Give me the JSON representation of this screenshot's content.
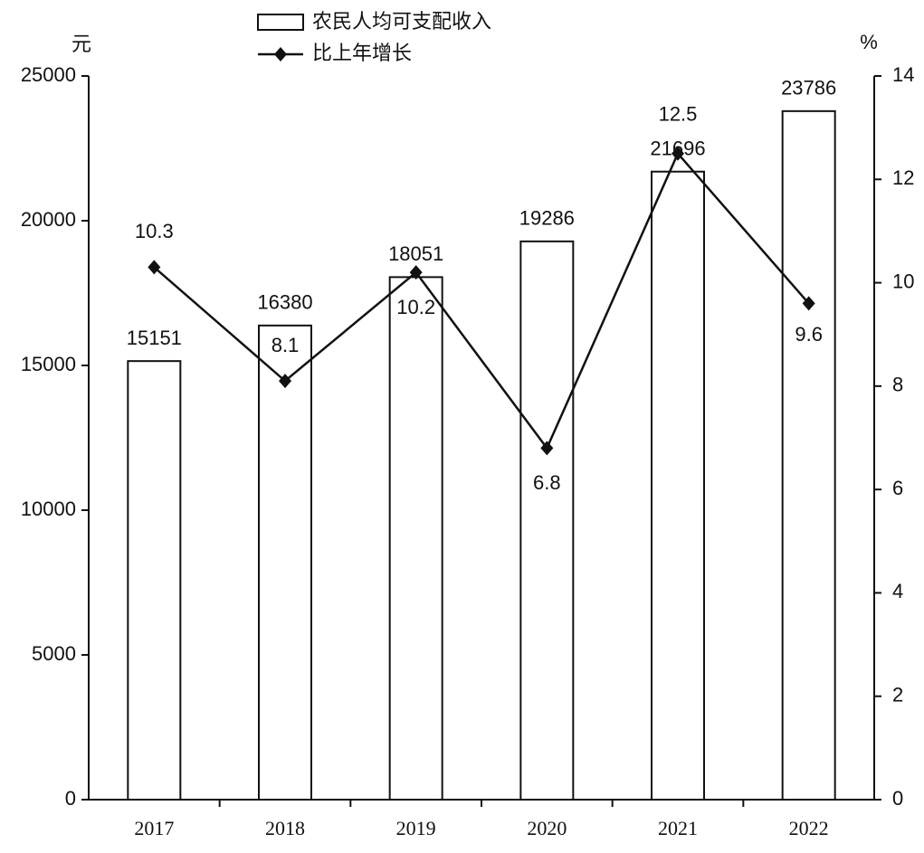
{
  "chart_data": {
    "type": "bar-line",
    "y_label": "元",
    "y2_label": "%",
    "categories": [
      "2017",
      "2018",
      "2019",
      "2020",
      "2021",
      "2022"
    ],
    "series": [
      {
        "name": "农民人均可支配收入",
        "type": "bar",
        "color": "#ffffff",
        "values": [
          15151,
          16380,
          18051,
          19286,
          21696,
          23786
        ]
      },
      {
        "name": "比上年增长",
        "type": "line",
        "axis": "y2",
        "color": "#111111",
        "values": [
          10.3,
          8.1,
          10.2,
          6.8,
          12.5,
          9.6
        ]
      }
    ],
    "ylim": [
      0,
      25000
    ],
    "yticks": [
      0,
      5000,
      10000,
      15000,
      20000,
      25000
    ],
    "y2lim": [
      0,
      14
    ],
    "y2ticks": [
      0,
      2,
      4,
      6,
      8,
      10,
      12,
      14
    ]
  }
}
